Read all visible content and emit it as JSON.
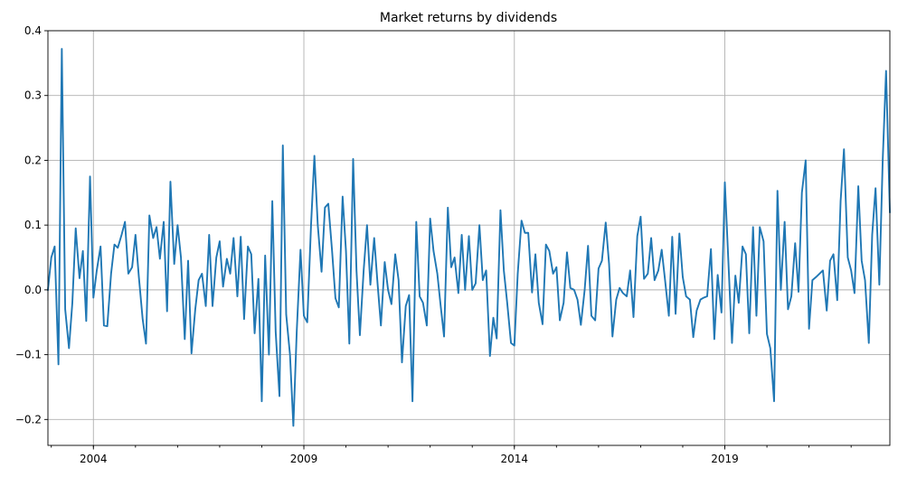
{
  "chart_data": {
    "type": "line",
    "title": "Market returns by dividends",
    "xlabel": "",
    "ylabel": "",
    "xlim": [
      2002.92,
      2022.92
    ],
    "ylim": [
      -0.24,
      0.4
    ],
    "grid": true,
    "legend": "none",
    "line_color": "#1f77b4",
    "x_ticks": [
      {
        "value": 2004,
        "label": "2004"
      },
      {
        "value": 2009,
        "label": "2009"
      },
      {
        "value": 2014,
        "label": "2014"
      },
      {
        "value": 2019,
        "label": "2019"
      }
    ],
    "y_ticks": [
      {
        "value": 0.4,
        "label": "0.4"
      },
      {
        "value": 0.3,
        "label": "0.3"
      },
      {
        "value": 0.2,
        "label": "0.2"
      },
      {
        "value": 0.1,
        "label": "0.1"
      },
      {
        "value": 0.0,
        "label": "0.0"
      },
      {
        "value": -0.1,
        "label": "−0.1"
      },
      {
        "value": -0.2,
        "label": "−0.2"
      }
    ],
    "series": [
      {
        "x": [
          2002.92,
          2003.0,
          2003.08,
          2003.17,
          2003.25,
          2003.33,
          2003.42,
          2003.5,
          2003.58,
          2003.67,
          2003.75,
          2003.83,
          2003.92,
          2004.0,
          2004.08,
          2004.17,
          2004.25,
          2004.33,
          2004.42,
          2004.5,
          2004.58,
          2004.67,
          2004.75,
          2004.83,
          2004.92,
          2005.0,
          2005.08,
          2005.17,
          2005.25,
          2005.33,
          2005.42,
          2005.5,
          2005.58,
          2005.67,
          2005.75,
          2005.83,
          2005.92,
          2006.0,
          2006.08,
          2006.17,
          2006.25,
          2006.33,
          2006.42,
          2006.5,
          2006.58,
          2006.67,
          2006.75,
          2006.83,
          2006.92,
          2007.0,
          2007.08,
          2007.17,
          2007.25,
          2007.33,
          2007.42,
          2007.5,
          2007.58,
          2007.67,
          2007.75,
          2007.83,
          2007.92,
          2008.0,
          2008.08,
          2008.17,
          2008.25,
          2008.33,
          2008.42,
          2008.5,
          2008.58,
          2008.67,
          2008.75,
          2008.83,
          2008.92,
          2009.0,
          2009.08,
          2009.17,
          2009.25,
          2009.33,
          2009.42,
          2009.5,
          2009.58,
          2009.67,
          2009.75,
          2009.83,
          2009.92,
          2010.0,
          2010.08,
          2010.17,
          2010.25,
          2010.33,
          2010.42,
          2010.5,
          2010.58,
          2010.67,
          2010.75,
          2010.83,
          2010.92,
          2011.0,
          2011.08,
          2011.17,
          2011.25,
          2011.33,
          2011.42,
          2011.5,
          2011.58,
          2011.67,
          2011.75,
          2011.83,
          2011.92,
          2012.0,
          2012.08,
          2012.17,
          2012.25,
          2012.33,
          2012.42,
          2012.5,
          2012.58,
          2012.67,
          2012.75,
          2012.83,
          2012.92,
          2013.0,
          2013.08,
          2013.17,
          2013.25,
          2013.33,
          2013.42,
          2013.5,
          2013.58,
          2013.67,
          2013.75,
          2013.83,
          2013.92,
          2014.0,
          2014.08,
          2014.17,
          2014.25,
          2014.33,
          2014.42,
          2014.5,
          2014.58,
          2014.67,
          2014.75,
          2014.83,
          2014.92,
          2015.0,
          2015.08,
          2015.17,
          2015.25,
          2015.33,
          2015.42,
          2015.5,
          2015.58,
          2015.67,
          2015.75,
          2015.83,
          2015.92,
          2016.0,
          2016.08,
          2016.17,
          2016.25,
          2016.33,
          2016.42,
          2016.5,
          2016.58,
          2016.67,
          2016.75,
          2016.83,
          2016.92,
          2017.0,
          2017.08,
          2017.17,
          2017.25,
          2017.33,
          2017.42,
          2017.5,
          2017.58,
          2017.67,
          2017.75,
          2017.83,
          2017.92,
          2018.0,
          2018.08,
          2018.17,
          2018.25,
          2018.33,
          2018.42,
          2018.5,
          2018.58,
          2018.67,
          2018.75,
          2018.83,
          2018.92,
          2019.0,
          2019.08,
          2019.17,
          2019.25,
          2019.33,
          2019.42,
          2019.5,
          2019.58,
          2019.67,
          2019.75,
          2019.83,
          2019.92,
          2020.0,
          2020.08,
          2020.17,
          2020.25,
          2020.33,
          2020.42,
          2020.5,
          2020.58,
          2020.67,
          2020.75,
          2020.83,
          2020.92,
          2021.0,
          2021.08,
          2021.17,
          2021.25,
          2021.33,
          2021.42,
          2021.5,
          2021.58,
          2021.67,
          2021.75,
          2021.83,
          2021.92,
          2022.0,
          2022.08,
          2022.17,
          2022.25,
          2022.33,
          2022.42,
          2022.5,
          2022.58,
          2022.67,
          2022.75,
          2022.83,
          2022.92
        ],
        "values": [
          0.0,
          0.05,
          0.067,
          -0.115,
          0.372,
          -0.03,
          -0.09,
          -0.02,
          0.095,
          0.018,
          0.06,
          -0.048,
          0.175,
          -0.012,
          0.03,
          0.067,
          -0.055,
          -0.056,
          0.025,
          0.07,
          0.065,
          0.085,
          0.105,
          0.025,
          0.035,
          0.085,
          0.02,
          -0.045,
          -0.083,
          0.115,
          0.08,
          0.097,
          0.048,
          0.105,
          -0.033,
          0.167,
          0.04,
          0.1,
          0.05,
          -0.076,
          0.045,
          -0.098,
          -0.03,
          0.015,
          0.025,
          -0.025,
          0.085,
          -0.025,
          0.05,
          0.075,
          0.005,
          0.048,
          0.025,
          0.08,
          -0.01,
          0.082,
          -0.045,
          0.067,
          0.055,
          -0.067,
          0.017,
          -0.172,
          0.053,
          -0.1,
          0.137,
          -0.065,
          -0.164,
          0.223,
          -0.038,
          -0.1,
          -0.21,
          -0.065,
          0.062,
          -0.04,
          -0.05,
          0.1,
          0.207,
          0.1,
          0.028,
          0.127,
          0.133,
          0.06,
          -0.013,
          -0.027,
          0.144,
          0.06,
          -0.083,
          0.202,
          0.03,
          -0.07,
          0.03,
          0.1,
          0.008,
          0.08,
          0.01,
          -0.055,
          0.043,
          0.0,
          -0.022,
          0.055,
          0.015,
          -0.112,
          -0.025,
          -0.008,
          -0.172,
          0.105,
          -0.01,
          -0.02,
          -0.055,
          0.11,
          0.06,
          0.025,
          -0.025,
          -0.072,
          0.127,
          0.035,
          0.05,
          -0.005,
          0.085,
          0.0,
          0.083,
          0.0,
          0.01,
          0.1,
          0.015,
          0.03,
          -0.102,
          -0.043,
          -0.075,
          0.123,
          0.03,
          -0.02,
          -0.082,
          -0.086,
          0.025,
          0.107,
          0.088,
          0.088,
          -0.004,
          0.055,
          -0.02,
          -0.053,
          0.07,
          0.06,
          0.025,
          0.035,
          -0.047,
          -0.02,
          0.058,
          0.003,
          0.0,
          -0.015,
          -0.054,
          0.0,
          0.068,
          -0.04,
          -0.047,
          0.033,
          0.045,
          0.104,
          0.04,
          -0.072,
          -0.015,
          0.003,
          -0.005,
          -0.01,
          0.03,
          -0.042,
          0.083,
          0.113,
          0.017,
          0.025,
          0.08,
          0.015,
          0.03,
          0.062,
          0.015,
          -0.04,
          0.082,
          -0.037,
          0.087,
          0.02,
          -0.01,
          -0.015,
          -0.073,
          -0.032,
          -0.015,
          -0.012,
          -0.01,
          0.063,
          -0.076,
          0.023,
          -0.035,
          0.166,
          0.05,
          -0.082,
          0.022,
          -0.02,
          0.067,
          0.055,
          -0.067,
          0.097,
          -0.04,
          0.097,
          0.075,
          -0.068,
          -0.09,
          -0.172,
          0.153,
          0.0,
          0.105,
          -0.03,
          -0.01,
          0.072,
          -0.003,
          0.15,
          0.2,
          -0.06,
          0.015,
          0.02,
          0.025,
          0.03,
          -0.032,
          0.045,
          0.055,
          -0.016,
          0.137,
          0.217,
          0.05,
          0.03,
          -0.005,
          0.16,
          0.045,
          0.015,
          -0.082,
          0.085,
          0.157,
          0.008,
          0.2,
          0.338,
          0.12
        ]
      }
    ]
  }
}
